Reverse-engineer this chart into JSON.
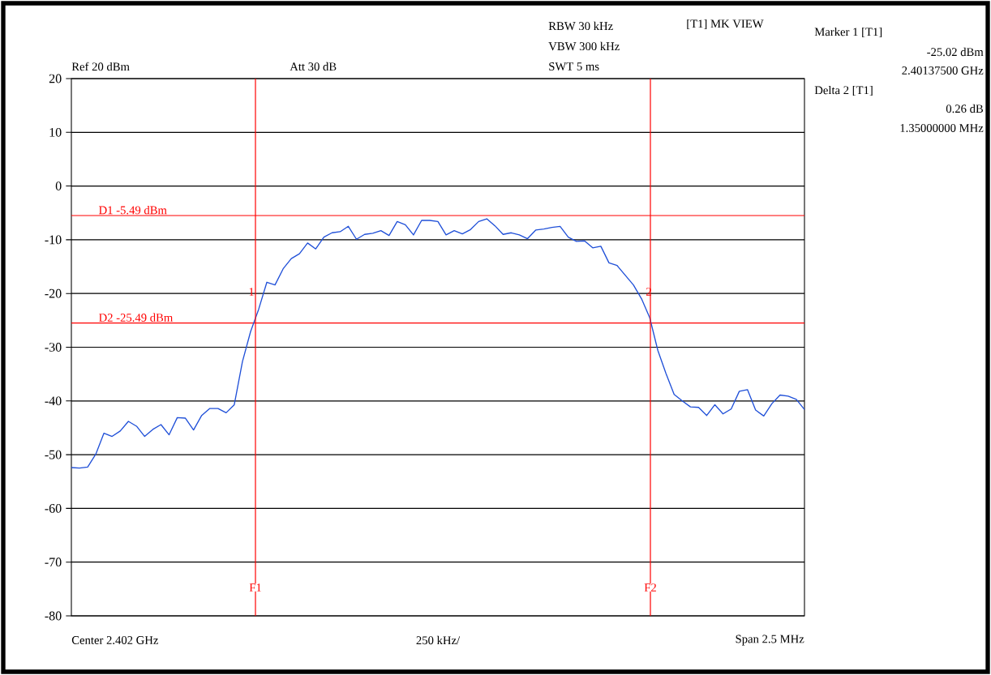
{
  "chart_data": {
    "type": "line",
    "annotations": [
      "Ref 20 dBm",
      "Att 30 dB",
      "RBW 30 kHz",
      "VBW 300 kHz",
      "SWT 5 ms",
      "[T1] MK VIEW",
      "Marker 1 [T1]",
      "-25.02 dBm",
      "2.40137500 GHz",
      "Delta 2 [T1]",
      "0.26 dB",
      "1.35000000 MHz",
      "Center 2.402 GHz",
      "250 kHz/",
      "Span 2.5 MHz",
      "1",
      "2",
      "F1",
      "F2"
    ],
    "categories": [
      null,
      null,
      null,
      null,
      null,
      null,
      null,
      null,
      null,
      null,
      null,
      null,
      null,
      null,
      null,
      null,
      null,
      null,
      null,
      null,
      null,
      null,
      null,
      null,
      null,
      null,
      null,
      null,
      null,
      null,
      null,
      null,
      null,
      null,
      null,
      null,
      null,
      null,
      null,
      null,
      null,
      null,
      null,
      null,
      null,
      null,
      null,
      null,
      null,
      null,
      null,
      null,
      null,
      null,
      null,
      null,
      null,
      null,
      null,
      null,
      null,
      null,
      null,
      null,
      null,
      null,
      null,
      null,
      null,
      null,
      null,
      null,
      null,
      null,
      null,
      null,
      null,
      null,
      null,
      null,
      null,
      null,
      null,
      null,
      null,
      null,
      null,
      null,
      null,
      null,
      null
    ],
    "series": [
      {
        "color": "#2050d8",
        "values": [
          -52.4,
          -52.5,
          -52.3,
          -49.9,
          -46.0,
          -46.6,
          -45.6,
          -43.8,
          -44.7,
          -46.6,
          -45.3,
          -44.4,
          -46.3,
          -43.1,
          -43.2,
          -45.4,
          -42.7,
          -41.4,
          -41.4,
          -42.2,
          -40.7,
          -32.7,
          -27.1,
          -22.9,
          -17.9,
          -18.4,
          -15.4,
          -13.5,
          -12.6,
          -10.6,
          -11.7,
          -9.5,
          -8.7,
          -8.5,
          -7.5,
          -9.9,
          -9.0,
          -8.8,
          -8.3,
          -9.2,
          -6.6,
          -7.2,
          -9.1,
          -6.4,
          -6.4,
          -6.6,
          -9.1,
          -8.3,
          -8.9,
          -8.1,
          -6.6,
          -6.1,
          -7.4,
          -9.0,
          -8.7,
          -9.1,
          -9.8,
          -8.2,
          -8.0,
          -7.7,
          -7.5,
          -9.5,
          -10.3,
          -10.2,
          -11.5,
          -11.2,
          -14.3,
          -14.8,
          -16.6,
          -18.4,
          -21.0,
          -24.5,
          -30.6,
          -34.9,
          -38.8,
          -40.0,
          -41.1,
          -41.2,
          -42.7,
          -40.7,
          -42.4,
          -41.5,
          -38.2,
          -37.9,
          -41.7,
          -42.8,
          -40.5,
          -38.9,
          -39.1,
          -39.7,
          -41.6
        ]
      }
    ],
    "ylim": [
      -80,
      20
    ],
    "yticks": [
      -80,
      -70,
      -60,
      -50,
      -40,
      -30,
      -20,
      -10,
      0,
      10,
      20
    ],
    "tick_labels": "y",
    "grid": "y",
    "ref_lines": [
      {
        "axis": "y",
        "value": -5.49,
        "label": "D1 -5.49 dBm",
        "color": "#ff0000"
      },
      {
        "axis": "y",
        "value": -25.49,
        "label": "D2 -25.49 dBm",
        "color": "#ff0000"
      }
    ]
  }
}
